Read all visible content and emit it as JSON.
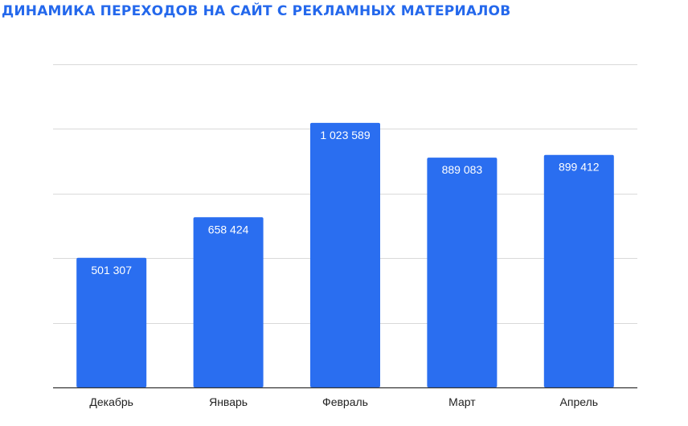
{
  "chart_data": {
    "type": "bar",
    "title": "ДИНАМИКА ПЕРЕХОДОВ НА САЙТ С РЕКЛАМНЫХ МАТЕРИАЛОВ",
    "categories": [
      "Декабрь",
      "Январь",
      "Февраль",
      "Март",
      "Апрель"
    ],
    "values": [
      501307,
      658424,
      1023589,
      889083,
      899412
    ],
    "value_labels": [
      "501 307",
      "658 424",
      "1 023 589",
      "889 083",
      "899 412"
    ],
    "ylim": [
      0,
      1250000
    ],
    "grid": true,
    "legend": "none",
    "bar_color": "#2a6ef0",
    "title_color": "#2468ec"
  }
}
